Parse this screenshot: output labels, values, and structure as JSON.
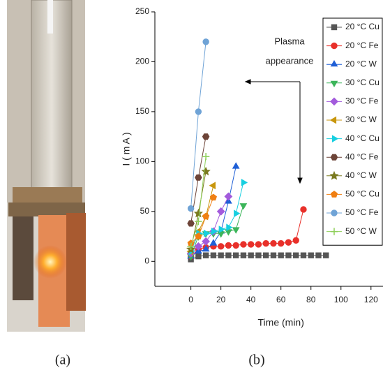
{
  "panel_labels": [
    "(a)",
    "(b)"
  ],
  "chart_data": {
    "type": "line",
    "xlabel": "Time (min)",
    "ylabel": "I ( m A )",
    "annotation": [
      "Plasma",
      "appearance"
    ],
    "xlim": [
      -24,
      128
    ],
    "ylim": [
      -25,
      250
    ],
    "xticks": [
      0,
      20,
      40,
      60,
      80,
      100,
      120
    ],
    "yticks": [
      0,
      50,
      100,
      150,
      200,
      250
    ],
    "series": [
      {
        "name": "20 °C Cu",
        "color": "#555555",
        "marker": "square",
        "x": [
          0,
          5,
          10,
          15,
          20,
          25,
          30,
          35,
          40,
          45,
          50,
          55,
          60,
          65,
          70,
          75,
          80,
          85,
          90
        ],
        "values": [
          2,
          5,
          6,
          6,
          6,
          6,
          6,
          6,
          6,
          6,
          6,
          6,
          6,
          6,
          6,
          6,
          6,
          6,
          6
        ]
      },
      {
        "name": "20 °C Fe",
        "color": "#e8302a",
        "marker": "circle",
        "x": [
          0,
          5,
          10,
          15,
          20,
          25,
          30,
          35,
          40,
          45,
          50,
          55,
          60,
          65,
          70,
          75
        ],
        "values": [
          5,
          12,
          14,
          15,
          15,
          16,
          16,
          17,
          17,
          17,
          18,
          18,
          18,
          19,
          21,
          52
        ]
      },
      {
        "name": "20 °C W",
        "color": "#1f5fd6",
        "marker": "triangle",
        "x": [
          0,
          5,
          10,
          15,
          20,
          25,
          30
        ],
        "values": [
          5,
          10,
          12,
          18,
          30,
          60,
          95
        ]
      },
      {
        "name": "30 °C Cu",
        "color": "#3cb55a",
        "marker": "triangle-down",
        "x": [
          0,
          5,
          10,
          15,
          20,
          25,
          30,
          35
        ],
        "values": [
          5,
          25,
          28,
          28,
          28,
          30,
          32,
          56
        ]
      },
      {
        "name": "30 °C Fe",
        "color": "#a35bdc",
        "marker": "diamond",
        "x": [
          0,
          5,
          10,
          15,
          20,
          25
        ],
        "values": [
          8,
          15,
          20,
          30,
          50,
          65
        ]
      },
      {
        "name": "30 °C W",
        "color": "#c8960c",
        "marker": "triangle-left",
        "x": [
          0,
          5,
          10,
          15
        ],
        "values": [
          10,
          30,
          45,
          76
        ]
      },
      {
        "name": "40 °C Cu",
        "color": "#17cfe0",
        "marker": "triangle-right",
        "x": [
          0,
          5,
          10,
          15,
          20,
          25,
          30,
          35
        ],
        "values": [
          10,
          28,
          28,
          30,
          32,
          34,
          48,
          79
        ]
      },
      {
        "name": "40 °C Fe",
        "color": "#6d4438",
        "marker": "hexagon",
        "x": [
          0,
          5,
          10
        ],
        "values": [
          38,
          84,
          125
        ]
      },
      {
        "name": "40 °C W",
        "color": "#7a7a1f",
        "marker": "star",
        "x": [
          0,
          5,
          10
        ],
        "values": [
          12,
          48,
          90
        ]
      },
      {
        "name": "50 °C Cu",
        "color": "#f07f12",
        "marker": "pentagon",
        "x": [
          0,
          5,
          10,
          15
        ],
        "values": [
          18,
          25,
          45,
          64
        ]
      },
      {
        "name": "50 °C Fe",
        "color": "#6fa3d6",
        "marker": "circle",
        "x": [
          0,
          5,
          10
        ],
        "values": [
          53,
          150,
          220
        ]
      },
      {
        "name": "50 °C W",
        "color": "#8fcf5a",
        "marker": "plus",
        "x": [
          0,
          5,
          10
        ],
        "values": [
          15,
          40,
          105
        ]
      }
    ]
  }
}
